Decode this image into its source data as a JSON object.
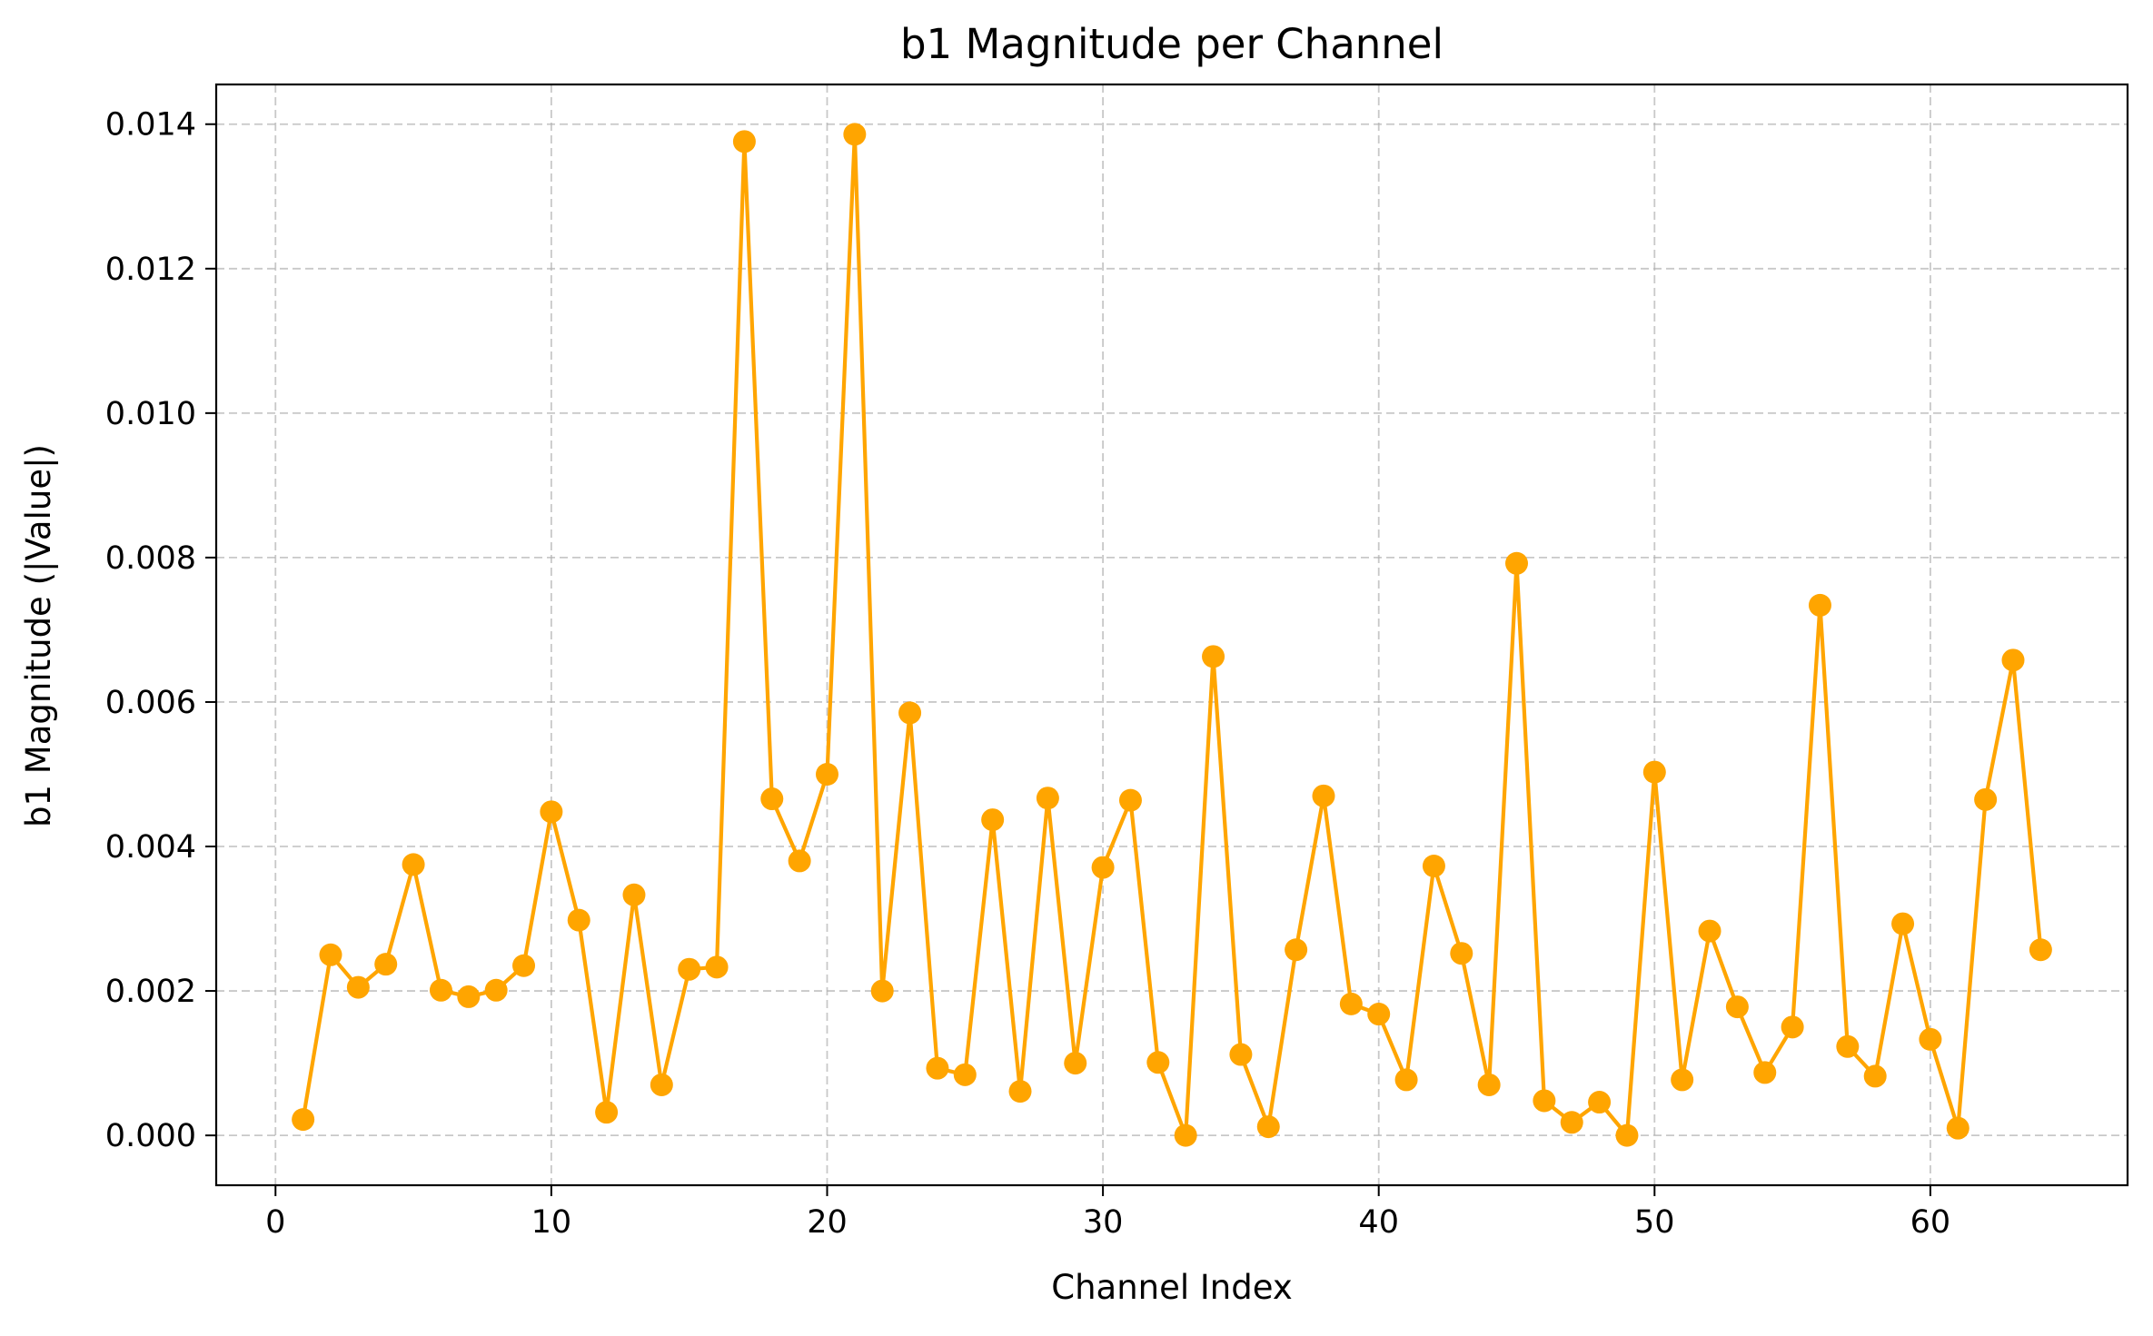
{
  "chart_data": {
    "type": "line",
    "title": "b1 Magnitude per Channel",
    "xlabel": "Channel Index",
    "ylabel": "b1 Magnitude (|Value|)",
    "xlim": [
      -2.15,
      67.15
    ],
    "ylim": [
      -0.00069,
      0.01455
    ],
    "xticks": [
      0,
      10,
      20,
      30,
      40,
      50,
      60
    ],
    "xtick_labels": [
      "0",
      "10",
      "20",
      "30",
      "40",
      "50",
      "60"
    ],
    "yticks": [
      0.0,
      0.002,
      0.004,
      0.006,
      0.008,
      0.01,
      0.012,
      0.014
    ],
    "ytick_labels": [
      "0.000",
      "0.002",
      "0.004",
      "0.006",
      "0.008",
      "0.010",
      "0.012",
      "0.014"
    ],
    "grid": true,
    "grid_style": "dashed",
    "line_color": "#FFA500",
    "marker": "circle",
    "series": [
      {
        "x": [
          1,
          2,
          3,
          4,
          5,
          6,
          7,
          8,
          9,
          10,
          11,
          12,
          13,
          14,
          15,
          16,
          17,
          18,
          19,
          20,
          21,
          22,
          23,
          24,
          25,
          26,
          27,
          28,
          29,
          30,
          31,
          32,
          33,
          34,
          35,
          36,
          37,
          38,
          39,
          40,
          41,
          42,
          43,
          44,
          45,
          46,
          47,
          48,
          49,
          50,
          51,
          52,
          53,
          54,
          55,
          56,
          57,
          58,
          59,
          60,
          61,
          62,
          63,
          64
        ],
        "values": [
          0.00022,
          0.0025,
          0.00205,
          0.00237,
          0.00375,
          0.00201,
          0.00192,
          0.00201,
          0.00235,
          0.00448,
          0.00298,
          0.00032,
          0.00333,
          0.0007,
          0.0023,
          0.00233,
          0.01376,
          0.00466,
          0.0038,
          0.005,
          0.01386,
          0.002,
          0.00585,
          0.00093,
          0.00084,
          0.00437,
          0.00061,
          0.00467,
          0.001,
          0.00371,
          0.00464,
          0.00101,
          0.0,
          0.00663,
          0.00112,
          0.00012,
          0.00257,
          0.0047,
          0.00182,
          0.00168,
          0.00077,
          0.00373,
          0.00252,
          0.0007,
          0.00792,
          0.00048,
          0.00018,
          0.00046,
          0.0,
          0.00503,
          0.00077,
          0.00283,
          0.00178,
          0.00087,
          0.0015,
          0.00734,
          0.00123,
          0.00082,
          0.00293,
          0.00133,
          0.0001,
          0.00465,
          0.00658,
          0.00257
        ]
      }
    ]
  }
}
